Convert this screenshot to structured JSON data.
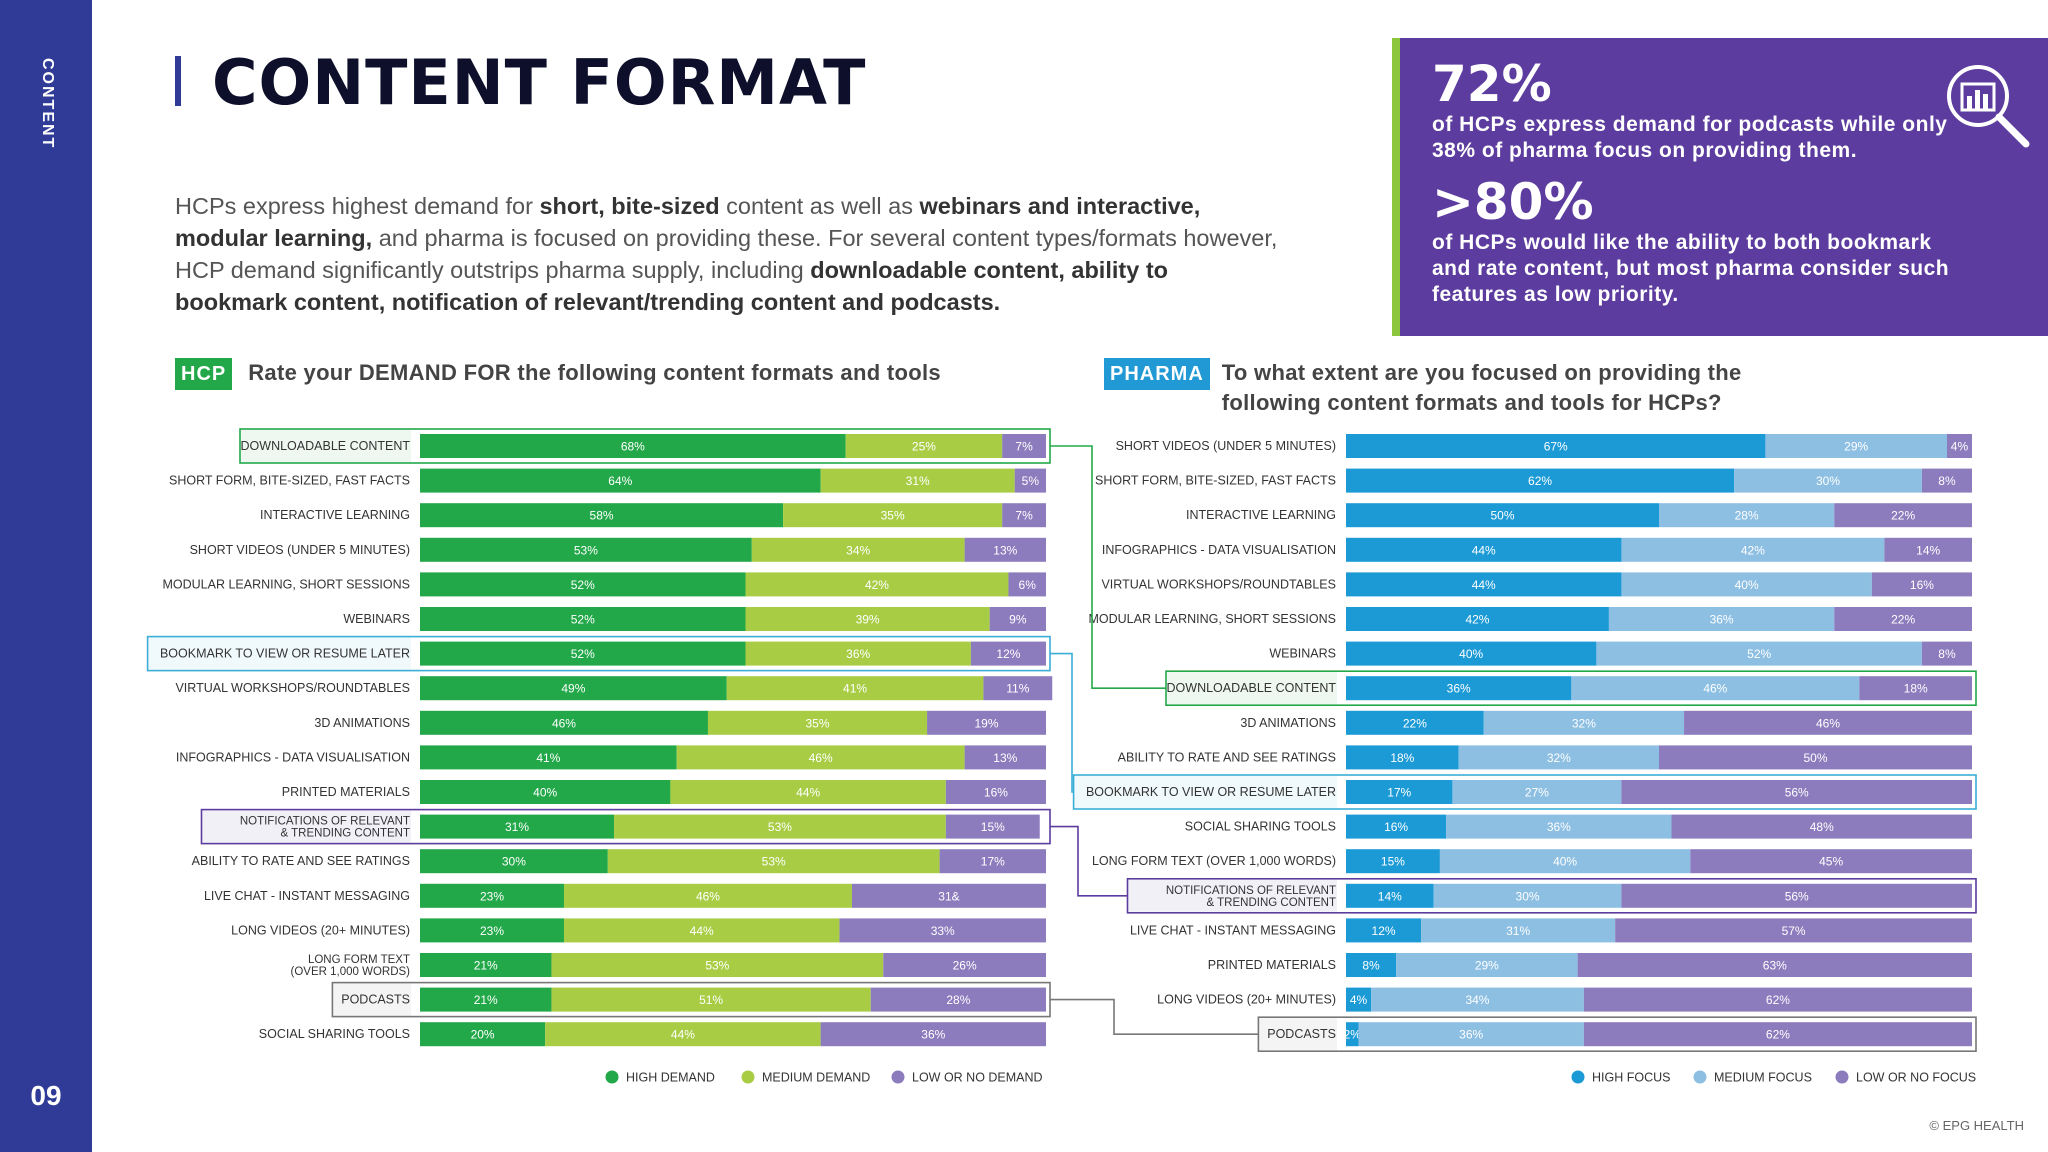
{
  "sidebar": {
    "section_label": "CONTENT",
    "page_number": "09"
  },
  "header": {
    "title": "CONTENT FORMAT"
  },
  "intro": {
    "segments": [
      {
        "text": "HCPs express highest demand for ",
        "bold": false
      },
      {
        "text": "short, bite-sized",
        "bold": true
      },
      {
        "text": " content as well as ",
        "bold": false
      },
      {
        "text": "webinars and interactive, modular learning,",
        "bold": true
      },
      {
        "text": " and pharma is focused on providing these. For several content types/formats however, HCP demand significantly outstrips pharma supply, including ",
        "bold": false
      },
      {
        "text": "downloadable content, ability to bookmark content, notification of relevant/trending content and podcasts.",
        "bold": true
      }
    ]
  },
  "callout": {
    "stat1": "72%",
    "text1": "of HCPs express demand for podcasts while only 38% of pharma focus on providing them.",
    "stat2": ">80%",
    "text2": "of HCPs would like the ability to both bookmark and rate content, but most pharma consider such features as low priority.",
    "icon": "chart-magnifier-icon"
  },
  "hcp_header": {
    "tag": "HCP",
    "question": "Rate your DEMAND FOR the following content formats and tools"
  },
  "pharma_header": {
    "tag": "PHARMA",
    "question": "To what extent are you focused on providing the following content formats and tools for HCPs?"
  },
  "colors": {
    "hcp_high": "#22a849",
    "hcp_medium": "#a8cd45",
    "hcp_low": "#8c7cbd",
    "pharma_high": "#1b9ad6",
    "pharma_medium": "#8dbfe3",
    "pharma_low": "#8c7cbd",
    "highlight_green": "#22a849",
    "highlight_blue": "#3aaed6",
    "highlight_purple": "#5c3c9e",
    "highlight_grey": "#777777"
  },
  "chart_data": [
    {
      "type": "bar",
      "orientation": "horizontal-stacked-100",
      "title": "Rate your DEMAND FOR the following content formats and tools",
      "legend": [
        "HIGH DEMAND",
        "MEDIUM DEMAND",
        "LOW OR NO DEMAND"
      ],
      "categories": [
        "DOWNLOADABLE CONTENT",
        "SHORT FORM, BITE-SIZED, FAST FACTS",
        "INTERACTIVE LEARNING",
        "SHORT VIDEOS (UNDER 5 MINUTES)",
        "MODULAR LEARNING, SHORT SESSIONS",
        "WEBINARS",
        "BOOKMARK TO VIEW OR RESUME LATER",
        "VIRTUAL WORKSHOPS/ROUNDTABLES",
        "3D ANIMATIONS",
        "INFOGRAPHICS - DATA VISUALISATION",
        "PRINTED MATERIALS",
        "NOTIFICATIONS OF RELEVANT\n& TRENDING CONTENT",
        "ABILITY TO RATE AND SEE RATINGS",
        "LIVE CHAT - INSTANT MESSAGING",
        "LONG VIDEOS (20+ MINUTES)",
        "LONG FORM TEXT\n(OVER 1,000 WORDS)",
        "PODCASTS",
        "SOCIAL SHARING TOOLS"
      ],
      "series": [
        {
          "name": "HIGH DEMAND",
          "values": [
            68,
            64,
            58,
            53,
            52,
            52,
            52,
            49,
            46,
            41,
            40,
            31,
            30,
            23,
            23,
            21,
            21,
            20
          ]
        },
        {
          "name": "MEDIUM DEMAND",
          "values": [
            25,
            31,
            35,
            34,
            42,
            39,
            36,
            41,
            35,
            46,
            44,
            53,
            53,
            46,
            44,
            53,
            51,
            44
          ]
        },
        {
          "name": "LOW OR NO DEMAND",
          "values": [
            7,
            5,
            7,
            13,
            6,
            9,
            12,
            11,
            19,
            13,
            16,
            15,
            17,
            31,
            33,
            26,
            28,
            36
          ]
        }
      ],
      "value_labels": [
        [
          "68%",
          "25%",
          "7%"
        ],
        [
          "64%",
          "31%",
          "5%"
        ],
        [
          "58%",
          "35%",
          "7%"
        ],
        [
          "53%",
          "34%",
          "13%"
        ],
        [
          "52%",
          "42%",
          "6%"
        ],
        [
          "52%",
          "39%",
          "9%"
        ],
        [
          "52%",
          "36%",
          "12%"
        ],
        [
          "49%",
          "41%",
          "11%"
        ],
        [
          "46%",
          "35%",
          "19%"
        ],
        [
          "41%",
          "46%",
          "13%"
        ],
        [
          "40%",
          "44%",
          "16%"
        ],
        [
          "31%",
          "53%",
          "15%"
        ],
        [
          "30%",
          "53%",
          "17%"
        ],
        [
          "23%",
          "46%",
          "31&"
        ],
        [
          "23%",
          "44%",
          "33%"
        ],
        [
          "21%",
          "53%",
          "26%"
        ],
        [
          "21%",
          "51%",
          "28%"
        ],
        [
          "20%",
          "44%",
          "36%"
        ]
      ],
      "highlights": [
        {
          "row": 0,
          "color": "highlight_green"
        },
        {
          "row": 6,
          "color": "highlight_blue"
        },
        {
          "row": 11,
          "color": "highlight_purple"
        },
        {
          "row": 16,
          "color": "highlight_grey"
        }
      ],
      "xlim": [
        0,
        100
      ]
    },
    {
      "type": "bar",
      "orientation": "horizontal-stacked-100",
      "title": "To what extent are you focused on providing the following content formats and tools for HCPs?",
      "legend": [
        "HIGH FOCUS",
        "MEDIUM FOCUS",
        "LOW OR NO FOCUS"
      ],
      "categories": [
        "SHORT VIDEOS (UNDER 5 MINUTES)",
        "SHORT FORM, BITE-SIZED, FAST FACTS",
        "INTERACTIVE LEARNING",
        "INFOGRAPHICS - DATA VISUALISATION",
        "VIRTUAL WORKSHOPS/ROUNDTABLES",
        "MODULAR LEARNING, SHORT SESSIONS",
        "WEBINARS",
        "DOWNLOADABLE CONTENT",
        "3D ANIMATIONS",
        "ABILITY TO RATE AND SEE RATINGS",
        "BOOKMARK TO VIEW OR RESUME LATER",
        "SOCIAL SHARING TOOLS",
        "LONG FORM TEXT (OVER 1,000 WORDS)",
        "NOTIFICATIONS OF RELEVANT\n& TRENDING CONTENT",
        "LIVE CHAT - INSTANT MESSAGING",
        "PRINTED MATERIALS",
        "LONG VIDEOS (20+ MINUTES)",
        "PODCASTS"
      ],
      "series": [
        {
          "name": "HIGH FOCUS",
          "values": [
            67,
            62,
            50,
            44,
            44,
            42,
            40,
            36,
            22,
            18,
            17,
            16,
            15,
            14,
            12,
            8,
            4,
            2
          ]
        },
        {
          "name": "MEDIUM FOCUS",
          "values": [
            29,
            30,
            28,
            42,
            40,
            36,
            52,
            46,
            32,
            32,
            27,
            36,
            40,
            30,
            31,
            29,
            34,
            36
          ]
        },
        {
          "name": "LOW OR NO FOCUS",
          "values": [
            4,
            8,
            22,
            14,
            16,
            22,
            8,
            18,
            46,
            50,
            56,
            48,
            45,
            56,
            57,
            63,
            62,
            62
          ]
        }
      ],
      "value_labels": [
        [
          "67%",
          "29%",
          "4%"
        ],
        [
          "62%",
          "30%",
          "8%"
        ],
        [
          "50%",
          "28%",
          "22%"
        ],
        [
          "44%",
          "42%",
          "14%"
        ],
        [
          "44%",
          "40%",
          "16%"
        ],
        [
          "42%",
          "36%",
          "22%"
        ],
        [
          "40%",
          "52%",
          "8%"
        ],
        [
          "36%",
          "46%",
          "18%"
        ],
        [
          "22%",
          "32%",
          "46%"
        ],
        [
          "18%",
          "32%",
          "50%"
        ],
        [
          "17%",
          "27%",
          "56%"
        ],
        [
          "16%",
          "36%",
          "48%"
        ],
        [
          "15%",
          "40%",
          "45%"
        ],
        [
          "14%",
          "30%",
          "56%"
        ],
        [
          "12%",
          "31%",
          "57%"
        ],
        [
          "8%",
          "29%",
          "63%"
        ],
        [
          "4%",
          "34%",
          "62%"
        ],
        [
          "2%",
          "36%",
          "62%"
        ]
      ],
      "highlights": [
        {
          "row": 7,
          "color": "highlight_green"
        },
        {
          "row": 10,
          "color": "highlight_blue"
        },
        {
          "row": 13,
          "color": "highlight_purple"
        },
        {
          "row": 17,
          "color": "highlight_grey"
        }
      ],
      "xlim": [
        0,
        100
      ]
    }
  ],
  "connectors": [
    {
      "from_row": 0,
      "to_row": 7,
      "color": "highlight_green"
    },
    {
      "from_row": 6,
      "to_row": 10,
      "color": "highlight_blue"
    },
    {
      "from_row": 11,
      "to_row": 13,
      "color": "highlight_purple"
    },
    {
      "from_row": 16,
      "to_row": 17,
      "color": "highlight_grey"
    }
  ],
  "copyright": "© EPG HEALTH"
}
